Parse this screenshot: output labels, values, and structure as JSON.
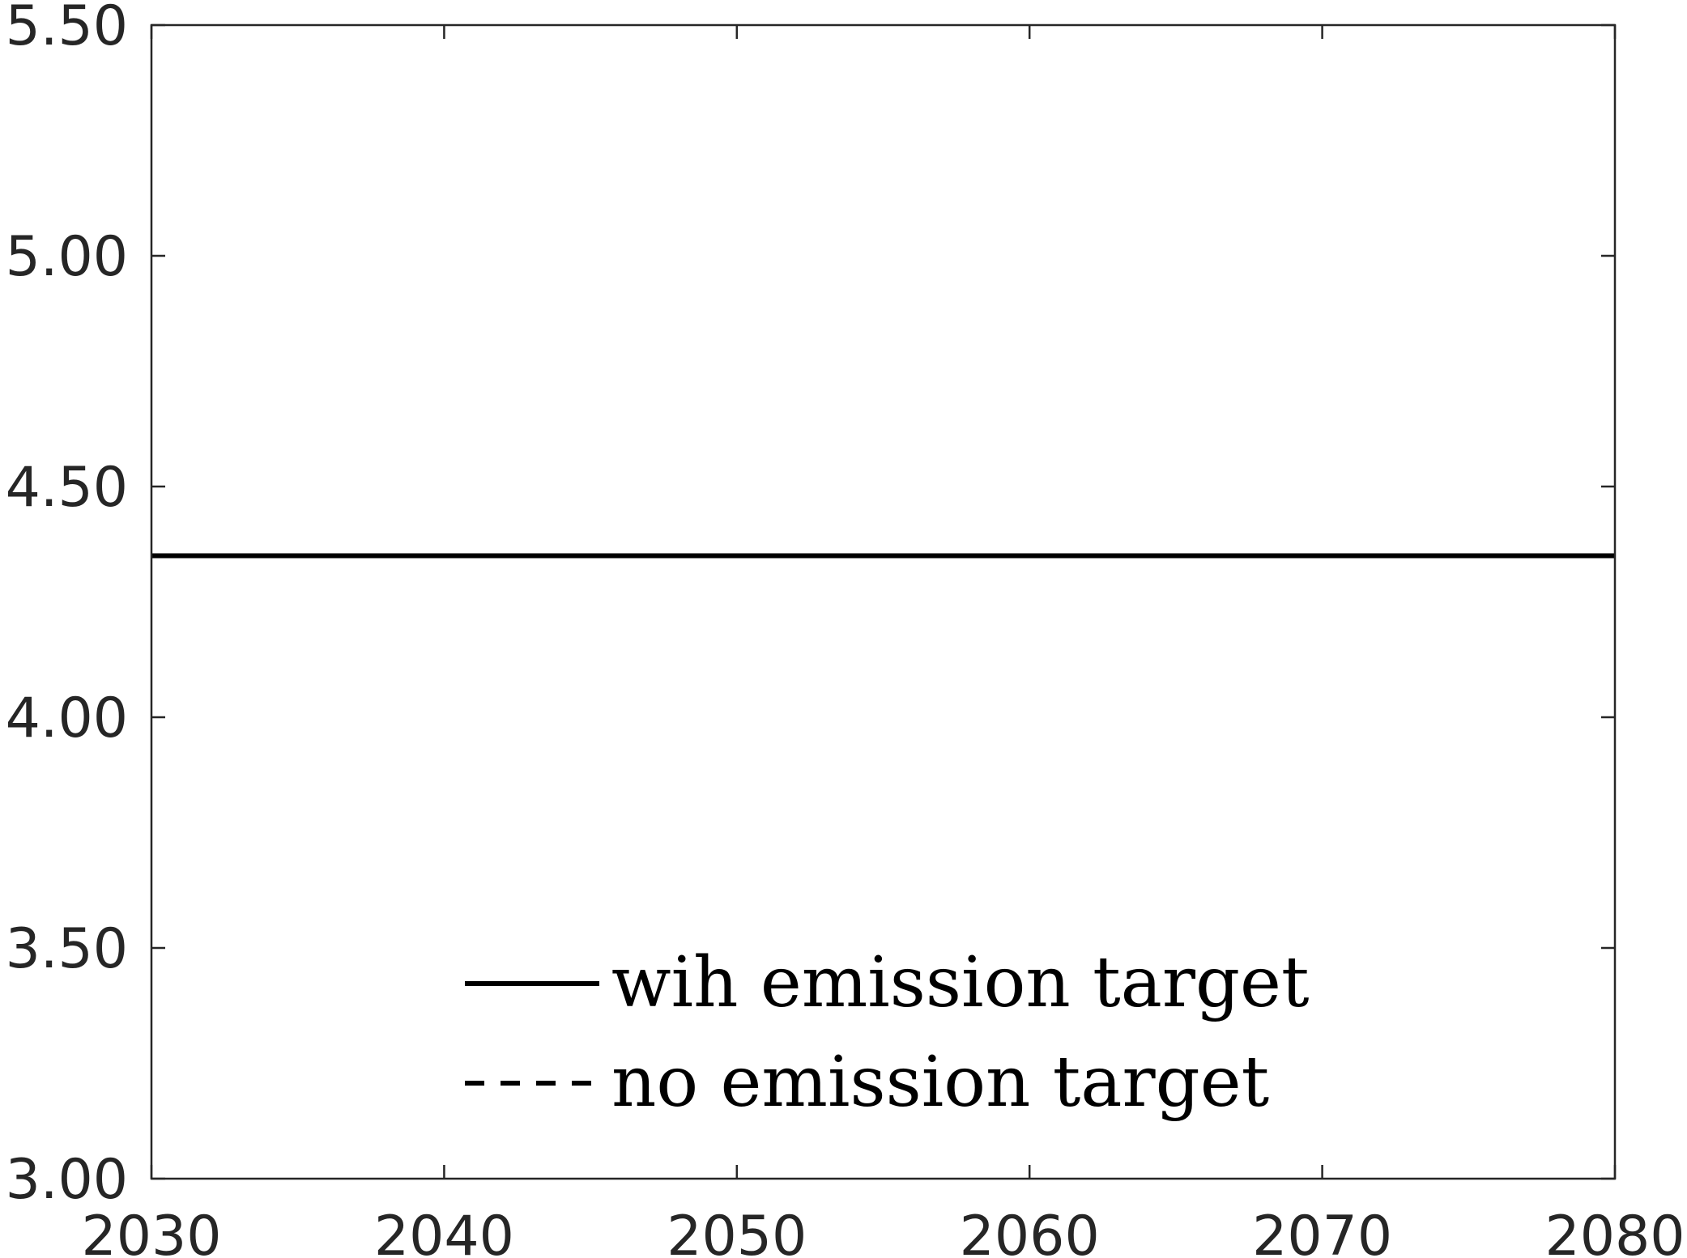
{
  "chart_data": {
    "type": "line",
    "title": "",
    "xlabel": "",
    "ylabel": "",
    "xlim": [
      2030,
      2080
    ],
    "ylim": [
      3.0,
      5.5
    ],
    "xticks": [
      2030,
      2040,
      2050,
      2060,
      2070,
      2080
    ],
    "xtick_labels": [
      "2030",
      "2040",
      "2050",
      "2060",
      "2070",
      "2080"
    ],
    "yticks": [
      3.0,
      3.5,
      4.0,
      4.5,
      5.0,
      5.5
    ],
    "ytick_labels": [
      "3.00",
      "3.50",
      "4.00",
      "4.50",
      "5.00",
      "5.50"
    ],
    "grid": false,
    "legend_position": "bottom-center",
    "series": [
      {
        "name": "wih emission target",
        "style": "solid",
        "color": "#000000",
        "x": [
          2030,
          2080
        ],
        "y": [
          4.35,
          4.35
        ]
      },
      {
        "name": "no emission target",
        "style": "dashed",
        "color": "#000000",
        "x": [
          2030,
          2080
        ],
        "y": [
          4.35,
          4.35
        ]
      }
    ]
  }
}
